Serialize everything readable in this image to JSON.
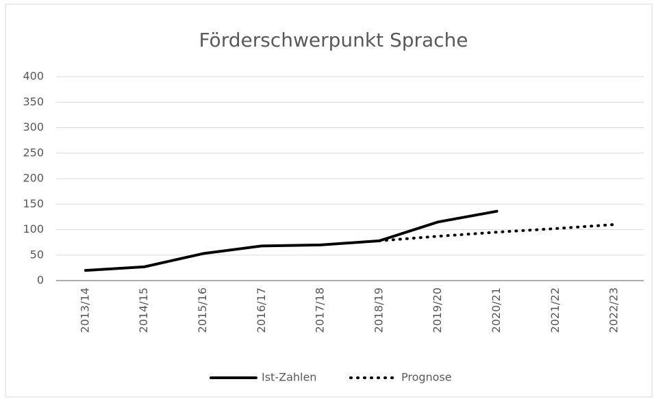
{
  "chart_data": {
    "type": "line",
    "title": "Förderschwerpunkt Sprache",
    "categories": [
      "2013/14",
      "2014/15",
      "2015/16",
      "2016/17",
      "2017/18",
      "2018/19",
      "2019/20",
      "2020/21",
      "2021/22",
      "2022/23"
    ],
    "series": [
      {
        "name": "Ist-Zahlen",
        "color": "#000000",
        "line_style": "solid",
        "values": [
          20,
          27,
          53,
          68,
          70,
          78,
          115,
          136,
          null,
          null
        ]
      },
      {
        "name": "Prognose",
        "color": "#000000",
        "line_style": "dotted",
        "values": [
          null,
          null,
          null,
          null,
          null,
          78,
          87,
          95,
          102,
          110
        ]
      }
    ],
    "ylim": [
      0,
      400
    ],
    "yticks": [
      0,
      50,
      100,
      150,
      200,
      250,
      300,
      350,
      400
    ],
    "grid": true,
    "legend": "bottom"
  }
}
